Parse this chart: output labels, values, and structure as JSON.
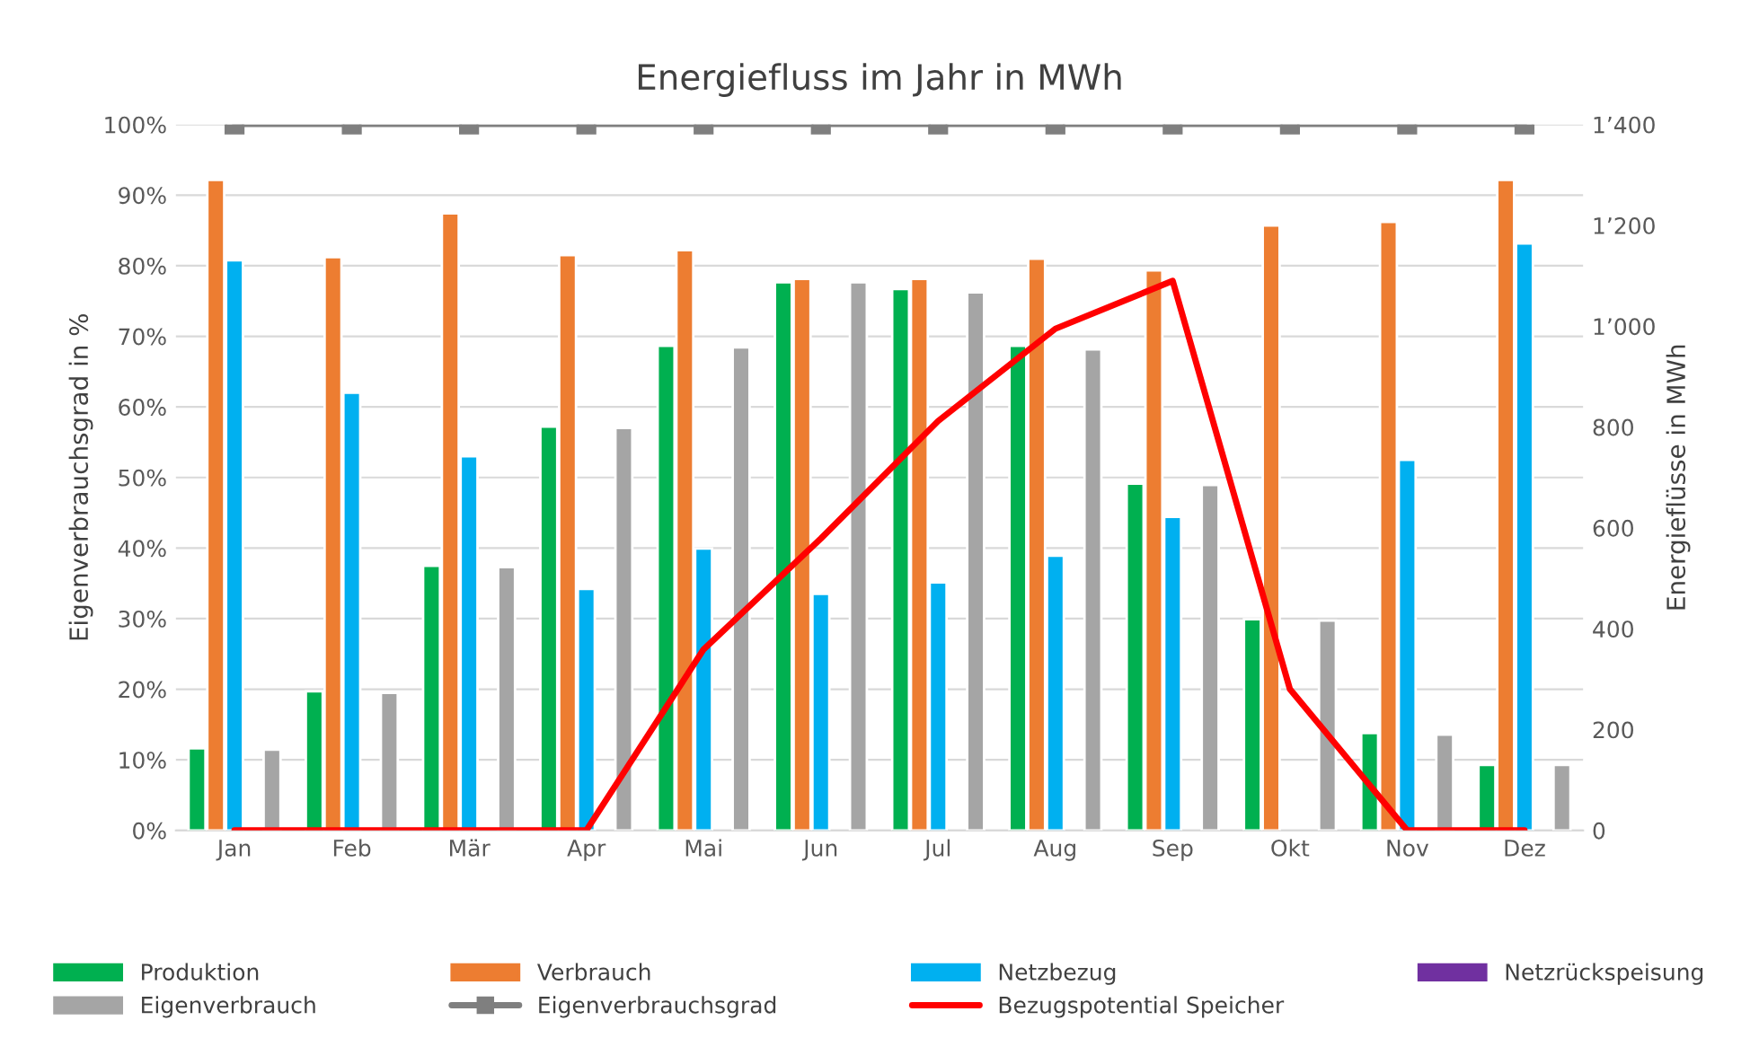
{
  "chart_data": {
    "type": "bar",
    "title": "Energiefluss im Jahr in MWh",
    "ylabel": "Eigenverbrauchsgrad in %",
    "y2label": "Energieflüsse in MWh",
    "categories": [
      "Jan",
      "Feb",
      "Mär",
      "Apr",
      "Mai",
      "Jun",
      "Jul",
      "Aug",
      "Sep",
      "Okt",
      "Nov",
      "Dez"
    ],
    "series": [
      {
        "name": "Produktion",
        "axis": "y2",
        "color": "#00b050",
        "values": [
          163,
          276,
          525,
          801,
          961,
          1087,
          1074,
          961,
          688,
          419,
          193,
          130
        ]
      },
      {
        "name": "Verbrauch",
        "axis": "y2",
        "color": "#ed7d31",
        "values": [
          1290,
          1137,
          1224,
          1141,
          1151,
          1094,
          1094,
          1134,
          1111,
          1200,
          1207,
          1290
        ]
      },
      {
        "name": "Netzbezug",
        "axis": "y2",
        "color": "#00b0f0",
        "values": [
          1131,
          868,
          742,
          479,
          559,
          469,
          492,
          545,
          622,
          null,
          735,
          1164
        ]
      },
      {
        "name": "Netzrückspeisung",
        "axis": "y2",
        "color": "#7030a0",
        "values": [
          null,
          null,
          null,
          null,
          null,
          null,
          null,
          null,
          null,
          null,
          null,
          null
        ]
      },
      {
        "name": "Eigenverbrauch",
        "axis": "y2",
        "color": "#a5a5a5",
        "values": [
          160,
          273,
          522,
          798,
          958,
          1087,
          1067,
          954,
          685,
          416,
          190,
          130
        ]
      },
      {
        "name": "Eigenverbrauchsgrad",
        "type": "line",
        "axis": "y",
        "color": "#7f7f7f",
        "marker": "square",
        "values": [
          100,
          100,
          100,
          100,
          100,
          100,
          100,
          100,
          100,
          100,
          100,
          100
        ]
      },
      {
        "name": "Bezugspotential Speicher",
        "type": "line",
        "axis": "y2",
        "color": "#ff0000",
        "marker": "none",
        "values": [
          0,
          0,
          0,
          0,
          359,
          579,
          812,
          995,
          1090,
          280,
          0,
          0
        ]
      }
    ],
    "ylim": [
      0,
      100
    ],
    "yticks": [
      {
        "value": 0,
        "label": "0%"
      },
      {
        "value": 10,
        "label": "10%"
      },
      {
        "value": 20,
        "label": "20%"
      },
      {
        "value": 30,
        "label": "30%"
      },
      {
        "value": 40,
        "label": "40%"
      },
      {
        "value": 50,
        "label": "50%"
      },
      {
        "value": 60,
        "label": "60%"
      },
      {
        "value": 70,
        "label": "70%"
      },
      {
        "value": 80,
        "label": "80%"
      },
      {
        "value": 90,
        "label": "90%"
      },
      {
        "value": 100,
        "label": "100%"
      }
    ],
    "y2lim": [
      0,
      1400
    ],
    "y2ticks": [
      0,
      200,
      400,
      600,
      800,
      {
        "value": 1000,
        "label": "1’000"
      },
      {
        "value": 1200,
        "label": "1’200"
      },
      {
        "value": 1400,
        "label": "1’400"
      }
    ],
    "grid": "y",
    "legend": "bottom"
  }
}
